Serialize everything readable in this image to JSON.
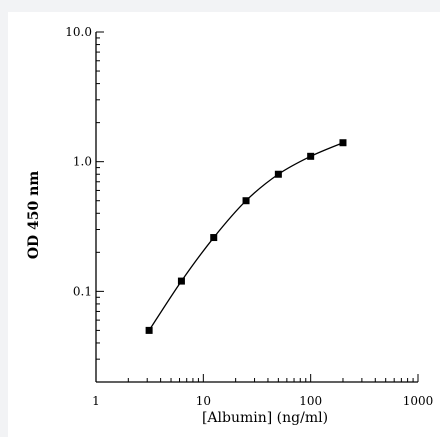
{
  "chart_data": {
    "type": "line",
    "title": "",
    "xlabel": "[Albumin] (ng/ml)",
    "ylabel": "OD 450 nm",
    "xscale": "log",
    "yscale": "log",
    "xlim": [
      1,
      1000
    ],
    "ylim": [
      0.02,
      10
    ],
    "x_ticks": [
      1,
      10,
      100,
      1000
    ],
    "x_tick_labels": [
      "1",
      "10",
      "100",
      "1000"
    ],
    "y_ticks": [
      0.1,
      1,
      10
    ],
    "y_tick_labels": [
      "0.1",
      "1.0",
      "10.0"
    ],
    "grid": false,
    "legend": "none",
    "series": [
      {
        "x": [
          3.125,
          6.25,
          12.5,
          25,
          50,
          100,
          200
        ],
        "y": [
          0.05,
          0.12,
          0.26,
          0.5,
          0.8,
          1.1,
          1.4
        ]
      }
    ],
    "colors": {
      "line": "#000000",
      "marker": "#000000"
    }
  }
}
